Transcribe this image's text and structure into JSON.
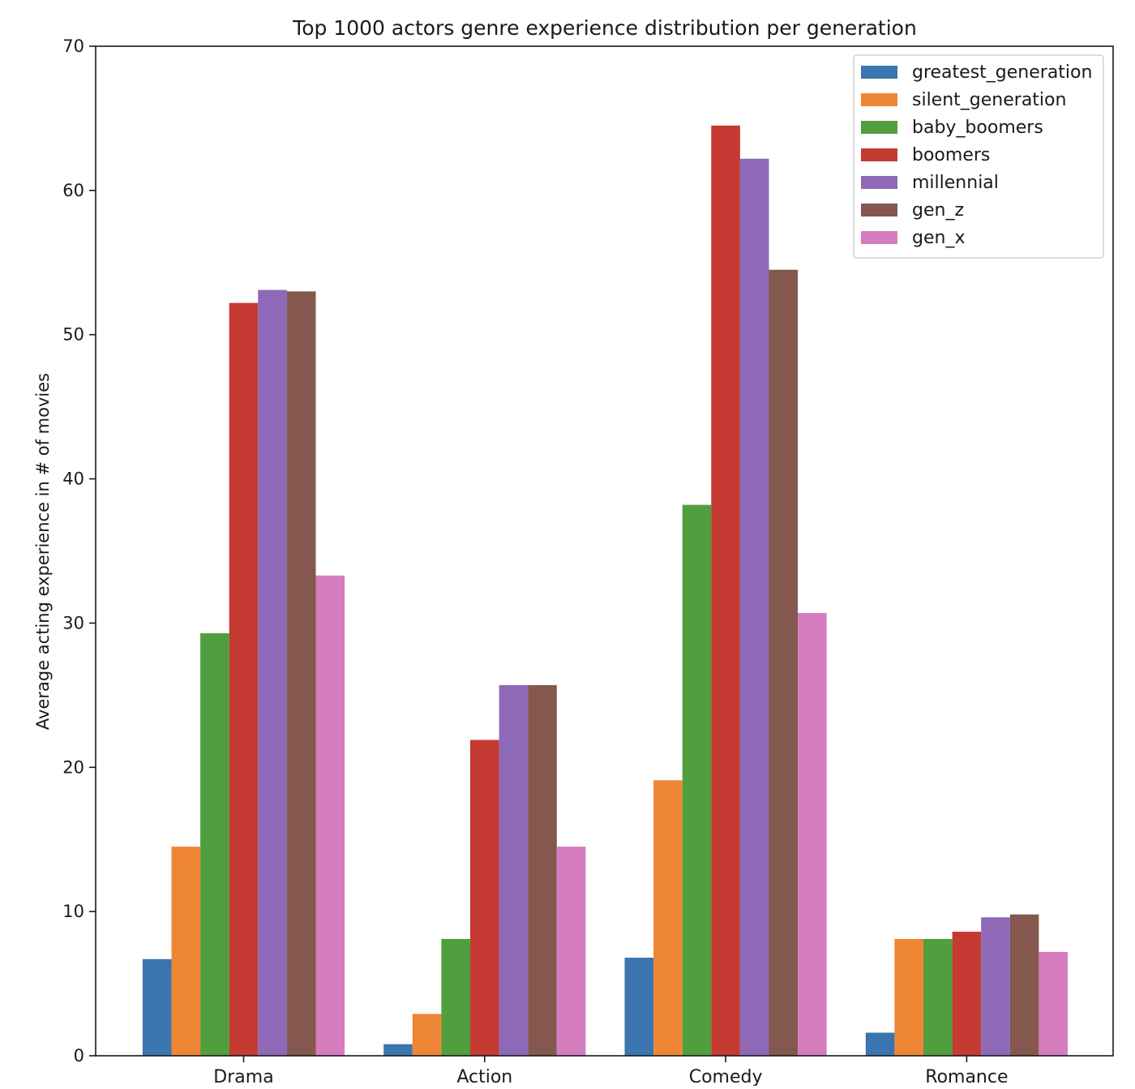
{
  "chart_data": {
    "type": "bar",
    "title": "Top 1000 actors genre experience distribution per generation",
    "xlabel": "",
    "ylabel": "Average acting experience in # of movies",
    "categories": [
      "Drama",
      "Action",
      "Comedy",
      "Romance"
    ],
    "ylim": [
      0,
      70
    ],
    "yticks": [
      0,
      10,
      20,
      30,
      40,
      50,
      60,
      70
    ],
    "grid": false,
    "legend_position": "top-right",
    "series": [
      {
        "name": "greatest_generation",
        "color": "#3a75af",
        "values": [
          6.7,
          0.8,
          6.8,
          1.6
        ]
      },
      {
        "name": "silent_generation",
        "color": "#ef8636",
        "values": [
          14.5,
          2.9,
          19.1,
          8.1
        ]
      },
      {
        "name": "baby_boomers",
        "color": "#519e3e",
        "values": [
          29.3,
          8.1,
          38.2,
          8.1
        ]
      },
      {
        "name": "boomers",
        "color": "#c53a32",
        "values": [
          52.2,
          21.9,
          64.5,
          8.6
        ]
      },
      {
        "name": "millennial",
        "color": "#8d69b8",
        "values": [
          53.1,
          25.7,
          62.2,
          9.6
        ]
      },
      {
        "name": "gen_z",
        "color": "#84584e",
        "values": [
          53.0,
          25.7,
          54.5,
          9.8
        ]
      },
      {
        "name": "gen_x",
        "color": "#d57dbf",
        "values": [
          33.3,
          14.5,
          30.7,
          7.2
        ]
      }
    ]
  }
}
